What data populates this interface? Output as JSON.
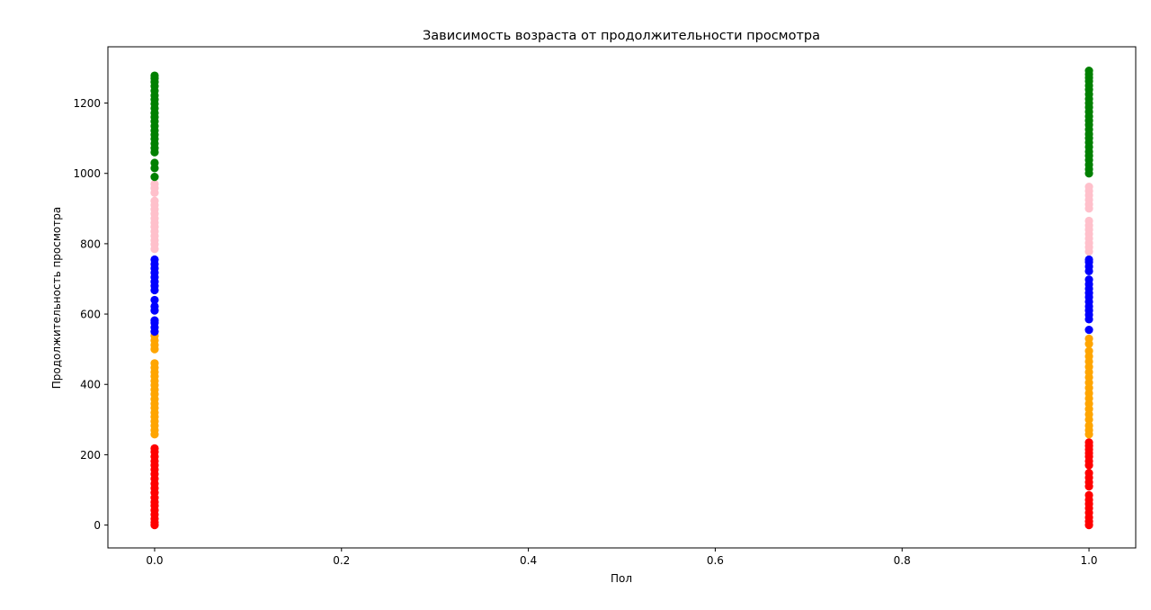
{
  "chart_data": {
    "type": "scatter",
    "title": "Зависимость возраста от продолжительности просмотра",
    "xlabel": "Пол",
    "ylabel": "Продолжительность просмотра",
    "xlim": [
      -0.05,
      1.05
    ],
    "ylim": [
      -65,
      1360
    ],
    "x_ticks": [
      0.0,
      0.2,
      0.4,
      0.6,
      0.8,
      1.0
    ],
    "x_tick_labels": [
      "0.0",
      "0.2",
      "0.4",
      "0.6",
      "0.8",
      "1.0"
    ],
    "y_ticks": [
      0,
      200,
      400,
      600,
      800,
      1000,
      1200
    ],
    "y_tick_labels": [
      "0",
      "200",
      "400",
      "600",
      "800",
      "1000",
      "1200"
    ],
    "grid": false,
    "legend": "none",
    "series": [
      {
        "color": "#ff0000",
        "points": [
          [
            0,
            0
          ],
          [
            0,
            8
          ],
          [
            0,
            18
          ],
          [
            0,
            30
          ],
          [
            0,
            42
          ],
          [
            0,
            55
          ],
          [
            0,
            65
          ],
          [
            0,
            78
          ],
          [
            0,
            92
          ],
          [
            0,
            105
          ],
          [
            0,
            118
          ],
          [
            0,
            132
          ],
          [
            0,
            145
          ],
          [
            0,
            158
          ],
          [
            0,
            170
          ],
          [
            0,
            182
          ],
          [
            0,
            195
          ],
          [
            0,
            208
          ],
          [
            0,
            218
          ],
          [
            1,
            0
          ],
          [
            1,
            10
          ],
          [
            1,
            22
          ],
          [
            1,
            35
          ],
          [
            1,
            48
          ],
          [
            1,
            60
          ],
          [
            1,
            72
          ],
          [
            1,
            85
          ],
          [
            1,
            110
          ],
          [
            1,
            122
          ],
          [
            1,
            135
          ],
          [
            1,
            148
          ],
          [
            1,
            170
          ],
          [
            1,
            182
          ],
          [
            1,
            195
          ],
          [
            1,
            205
          ],
          [
            1,
            215
          ],
          [
            1,
            225
          ],
          [
            1,
            235
          ]
        ]
      },
      {
        "color": "#ffa500",
        "points": [
          [
            0,
            258
          ],
          [
            0,
            270
          ],
          [
            0,
            283
          ],
          [
            0,
            295
          ],
          [
            0,
            308
          ],
          [
            0,
            320
          ],
          [
            0,
            333
          ],
          [
            0,
            345
          ],
          [
            0,
            358
          ],
          [
            0,
            372
          ],
          [
            0,
            385
          ],
          [
            0,
            398
          ],
          [
            0,
            410
          ],
          [
            0,
            423
          ],
          [
            0,
            435
          ],
          [
            0,
            448
          ],
          [
            0,
            460
          ],
          [
            0,
            500
          ],
          [
            0,
            512
          ],
          [
            0,
            525
          ],
          [
            0,
            538
          ],
          [
            1,
            258
          ],
          [
            1,
            270
          ],
          [
            1,
            283
          ],
          [
            1,
            300
          ],
          [
            1,
            315
          ],
          [
            1,
            330
          ],
          [
            1,
            345
          ],
          [
            1,
            360
          ],
          [
            1,
            375
          ],
          [
            1,
            390
          ],
          [
            1,
            405
          ],
          [
            1,
            420
          ],
          [
            1,
            435
          ],
          [
            1,
            450
          ],
          [
            1,
            465
          ],
          [
            1,
            480
          ],
          [
            1,
            495
          ],
          [
            1,
            515
          ],
          [
            1,
            530
          ]
        ]
      },
      {
        "color": "#0000ff",
        "points": [
          [
            0,
            550
          ],
          [
            0,
            562
          ],
          [
            0,
            575
          ],
          [
            0,
            582
          ],
          [
            0,
            610
          ],
          [
            0,
            622
          ],
          [
            0,
            640
          ],
          [
            0,
            668
          ],
          [
            0,
            680
          ],
          [
            0,
            692
          ],
          [
            0,
            705
          ],
          [
            0,
            718
          ],
          [
            0,
            730
          ],
          [
            0,
            742
          ],
          [
            0,
            755
          ],
          [
            1,
            555
          ],
          [
            1,
            585
          ],
          [
            1,
            598
          ],
          [
            1,
            610
          ],
          [
            1,
            622
          ],
          [
            1,
            635
          ],
          [
            1,
            648
          ],
          [
            1,
            660
          ],
          [
            1,
            672
          ],
          [
            1,
            685
          ],
          [
            1,
            698
          ],
          [
            1,
            722
          ],
          [
            1,
            735
          ],
          [
            1,
            748
          ],
          [
            1,
            755
          ]
        ]
      },
      {
        "color": "#ffc0cb",
        "points": [
          [
            0,
            785
          ],
          [
            0,
            798
          ],
          [
            0,
            810
          ],
          [
            0,
            822
          ],
          [
            0,
            835
          ],
          [
            0,
            848
          ],
          [
            0,
            860
          ],
          [
            0,
            872
          ],
          [
            0,
            885
          ],
          [
            0,
            898
          ],
          [
            0,
            910
          ],
          [
            0,
            922
          ],
          [
            0,
            945
          ],
          [
            0,
            958
          ],
          [
            0,
            970
          ],
          [
            1,
            778
          ],
          [
            1,
            790
          ],
          [
            1,
            802
          ],
          [
            1,
            815
          ],
          [
            1,
            828
          ],
          [
            1,
            840
          ],
          [
            1,
            852
          ],
          [
            1,
            865
          ],
          [
            1,
            900
          ],
          [
            1,
            912
          ],
          [
            1,
            925
          ],
          [
            1,
            938
          ],
          [
            1,
            950
          ],
          [
            1,
            962
          ]
        ]
      },
      {
        "color": "#008000",
        "points": [
          [
            0,
            990
          ],
          [
            0,
            1015
          ],
          [
            0,
            1030
          ],
          [
            0,
            1060
          ],
          [
            0,
            1072
          ],
          [
            0,
            1085
          ],
          [
            0,
            1098
          ],
          [
            0,
            1110
          ],
          [
            0,
            1122
          ],
          [
            0,
            1135
          ],
          [
            0,
            1148
          ],
          [
            0,
            1160
          ],
          [
            0,
            1172
          ],
          [
            0,
            1185
          ],
          [
            0,
            1198
          ],
          [
            0,
            1210
          ],
          [
            0,
            1222
          ],
          [
            0,
            1235
          ],
          [
            0,
            1248
          ],
          [
            0,
            1260
          ],
          [
            0,
            1270
          ],
          [
            0,
            1278
          ],
          [
            1,
            1000
          ],
          [
            1,
            1012
          ],
          [
            1,
            1025
          ],
          [
            1,
            1038
          ],
          [
            1,
            1050
          ],
          [
            1,
            1062
          ],
          [
            1,
            1075
          ],
          [
            1,
            1088
          ],
          [
            1,
            1100
          ],
          [
            1,
            1112
          ],
          [
            1,
            1125
          ],
          [
            1,
            1138
          ],
          [
            1,
            1150
          ],
          [
            1,
            1162
          ],
          [
            1,
            1175
          ],
          [
            1,
            1188
          ],
          [
            1,
            1200
          ],
          [
            1,
            1212
          ],
          [
            1,
            1225
          ],
          [
            1,
            1238
          ],
          [
            1,
            1250
          ],
          [
            1,
            1262
          ],
          [
            1,
            1272
          ],
          [
            1,
            1282
          ],
          [
            1,
            1292
          ]
        ]
      }
    ]
  }
}
